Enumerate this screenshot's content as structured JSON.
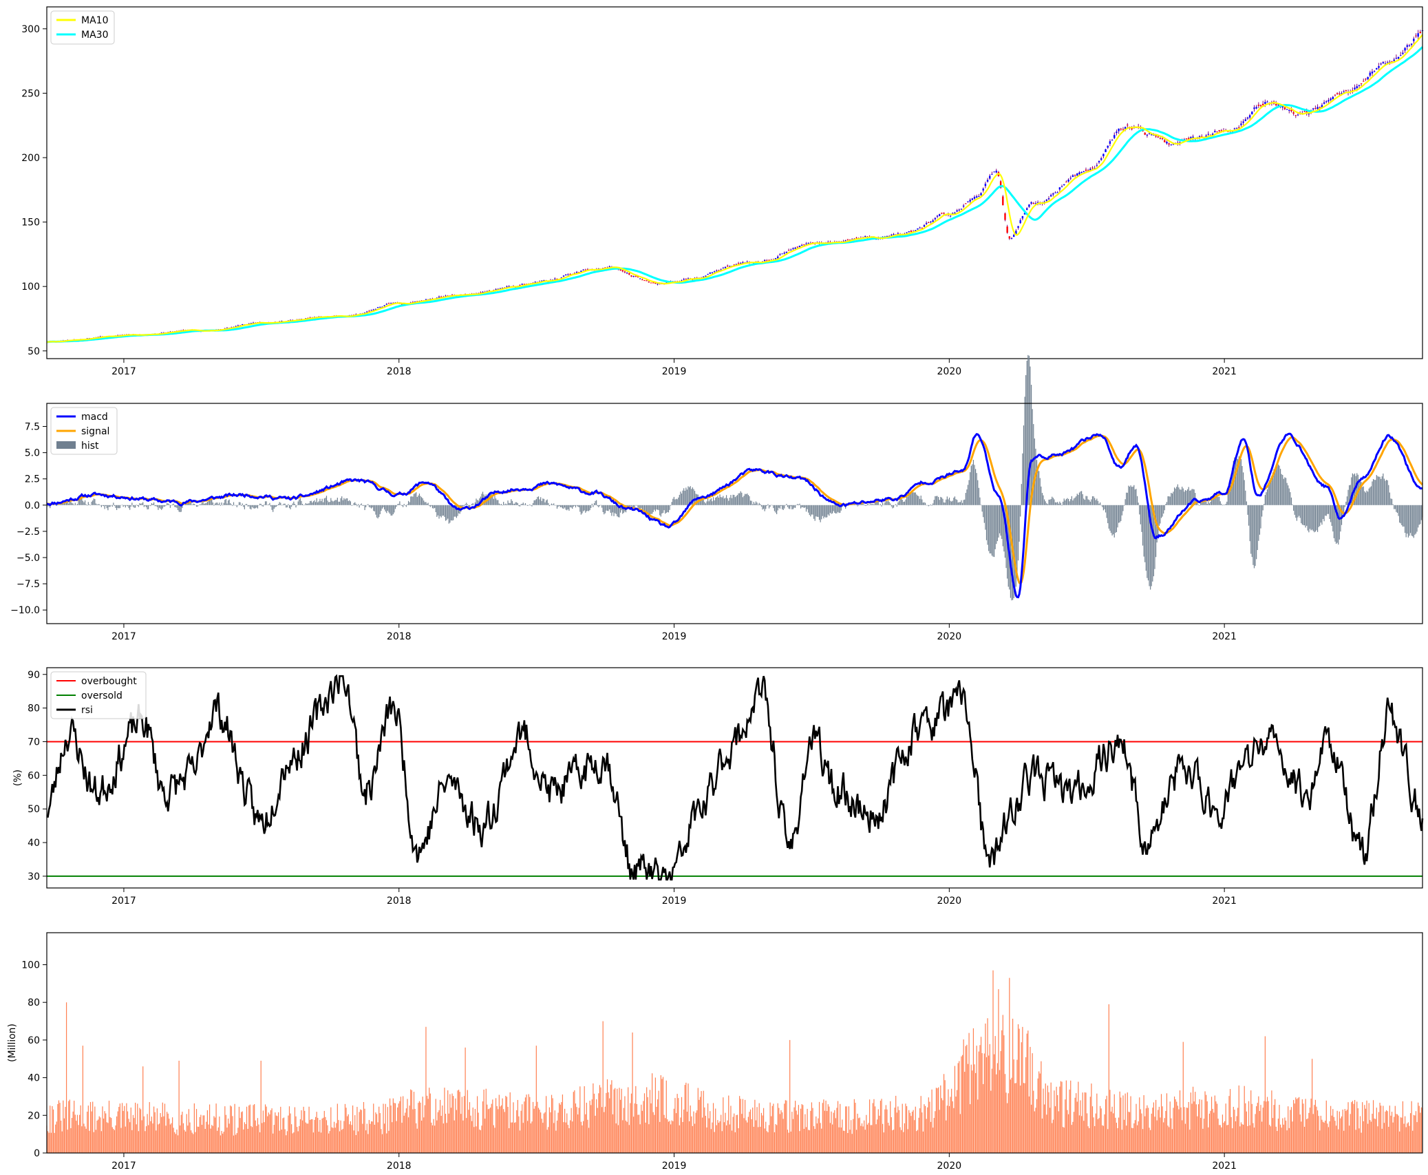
{
  "chart_data": [
    {
      "id": "price",
      "type": "candlestick+line",
      "xlim": [
        2016.72,
        2021.72
      ],
      "ylim": [
        44,
        317
      ],
      "yticks": [
        50,
        100,
        150,
        200,
        250,
        300
      ],
      "ytick_labels": [
        "50",
        "100",
        "150",
        "200",
        "250",
        "300"
      ],
      "xticks": [
        2017,
        2018,
        2019,
        2020,
        2021
      ],
      "xtick_labels": [
        "2017",
        "2018",
        "2019",
        "2020",
        "2021"
      ],
      "ylabel": "",
      "legend": {
        "placement": "top-left",
        "entries": [
          {
            "label": "MA10",
            "color": "#ffff00",
            "kind": "line"
          },
          {
            "label": "MA30",
            "color": "#00ffff",
            "kind": "line"
          }
        ]
      },
      "candle_colors": {
        "up": "#0000ff",
        "down": "#ff0000",
        "wick": "#800080"
      },
      "price_anchor_points": {
        "x": [
          2016.72,
          2017.0,
          2017.3,
          2017.5,
          2017.8,
          2018.0,
          2018.2,
          2018.5,
          2018.75,
          2018.95,
          2019.0,
          2019.3,
          2019.5,
          2019.7,
          2019.85,
          2020.0,
          2020.1,
          2020.17,
          2020.22,
          2020.3,
          2020.5,
          2020.65,
          2020.8,
          2021.0,
          2021.15,
          2021.3,
          2021.45,
          2021.6,
          2021.72
        ],
        "y": [
          57,
          62,
          66,
          72,
          77,
          87,
          93,
          103,
          115,
          102,
          104,
          120,
          133,
          138,
          140,
          157,
          170,
          190,
          138,
          165,
          190,
          225,
          212,
          221,
          242,
          236,
          250,
          275,
          298
        ]
      },
      "series": [
        {
          "name": "MA10",
          "color": "#ffff00",
          "lag_years": 0.02
        },
        {
          "name": "MA30",
          "color": "#00ffff",
          "lag_years": 0.06
        }
      ]
    },
    {
      "id": "macd",
      "type": "line+bar",
      "xlim": [
        2016.72,
        2021.72
      ],
      "ylim": [
        -11.3,
        9.7
      ],
      "yticks": [
        7.5,
        5.0,
        2.5,
        0.0,
        -2.5,
        -5.0,
        -7.5,
        -10.0
      ],
      "ytick_labels": [
        "7.5",
        "5.0",
        "2.5",
        "0.0",
        "−2.5",
        "−5.0",
        "−7.5",
        "−10.0"
      ],
      "xticks": [
        2017,
        2018,
        2019,
        2020,
        2021
      ],
      "xtick_labels": [
        "2017",
        "2018",
        "2019",
        "2020",
        "2021"
      ],
      "legend": {
        "placement": "top-left",
        "entries": [
          {
            "label": "macd",
            "color": "#0000ff",
            "kind": "line"
          },
          {
            "label": "signal",
            "color": "#ffa500",
            "kind": "line"
          },
          {
            "label": "hist",
            "color": "#708090",
            "kind": "patch"
          }
        ]
      },
      "macd_anchor_points": {
        "x": [
          2016.72,
          2016.9,
          2017.2,
          2017.45,
          2017.6,
          2017.85,
          2018.0,
          2018.1,
          2018.22,
          2018.4,
          2018.55,
          2018.7,
          2018.85,
          2018.98,
          2019.1,
          2019.3,
          2019.45,
          2019.6,
          2019.8,
          2019.92,
          2020.05,
          2020.1,
          2020.18,
          2020.25,
          2020.3,
          2020.4,
          2020.55,
          2020.62,
          2020.68,
          2020.75,
          2020.9,
          2021.0,
          2021.07,
          2021.12,
          2021.23,
          2021.37,
          2021.42,
          2021.5,
          2021.6,
          2021.72
        ],
        "y": [
          0.2,
          1.0,
          0.3,
          1.0,
          0.6,
          2.3,
          1.0,
          2.2,
          -0.5,
          1.5,
          2.0,
          1.2,
          -0.5,
          -2.1,
          0.8,
          3.3,
          2.5,
          0.0,
          0.6,
          2.3,
          3.2,
          6.8,
          1.0,
          -8.8,
          4.5,
          4.8,
          6.8,
          3.5,
          5.8,
          -3.0,
          0.3,
          1.2,
          6.5,
          1.0,
          6.6,
          1.8,
          -1.3,
          2.5,
          6.6,
          1.5
        ]
      },
      "series": [
        {
          "name": "macd",
          "color": "#0000ff"
        },
        {
          "name": "signal",
          "color": "#ffa500",
          "lag_years": 0.025
        },
        {
          "name": "hist",
          "color": "#708090",
          "type": "bar"
        }
      ]
    },
    {
      "id": "rsi",
      "type": "line",
      "xlim": [
        2016.72,
        2021.72
      ],
      "ylim": [
        26.5,
        92
      ],
      "yticks": [
        30,
        40,
        50,
        60,
        70,
        80,
        90
      ],
      "ytick_labels": [
        "30",
        "40",
        "50",
        "60",
        "70",
        "80",
        "90"
      ],
      "xticks": [
        2017,
        2018,
        2019,
        2020,
        2021
      ],
      "xtick_labels": [
        "2017",
        "2018",
        "2019",
        "2020",
        "2021"
      ],
      "ylabel": "(%)",
      "overbought": 70,
      "oversold": 30,
      "legend": {
        "placement": "top-left",
        "entries": [
          {
            "label": "overbought",
            "color": "#ff0000",
            "kind": "line"
          },
          {
            "label": "oversold",
            "color": "#008000",
            "kind": "line"
          },
          {
            "label": "rsi",
            "color": "#000000",
            "kind": "line"
          }
        ]
      },
      "rsi_anchor_points": {
        "x": [
          2016.72,
          2016.8,
          2016.9,
          2017.07,
          2017.15,
          2017.25,
          2017.33,
          2017.5,
          2017.6,
          2017.8,
          2017.88,
          2017.98,
          2018.07,
          2018.18,
          2018.3,
          2018.45,
          2018.55,
          2018.75,
          2018.85,
          2018.98,
          2019.1,
          2019.2,
          2019.32,
          2019.42,
          2019.5,
          2019.6,
          2019.72,
          2019.9,
          2020.05,
          2020.15,
          2020.2,
          2020.3,
          2020.45,
          2020.62,
          2020.72,
          2020.85,
          2020.98,
          2021.06,
          2021.15,
          2021.3,
          2021.38,
          2021.5,
          2021.6,
          2021.72
        ],
        "y": [
          50,
          73,
          55,
          76,
          55,
          60,
          80,
          46,
          65,
          89,
          55,
          80,
          38,
          58,
          45,
          72,
          55,
          65,
          32,
          29,
          50,
          68,
          84,
          38,
          70,
          55,
          48,
          75,
          82,
          32,
          45,
          60,
          55,
          70,
          40,
          62,
          50,
          62,
          70,
          55,
          71,
          36,
          78,
          48
        ]
      },
      "series": [
        {
          "name": "rsi",
          "color": "#000000"
        },
        {
          "name": "overbought",
          "color": "#ff0000",
          "constant": 70
        },
        {
          "name": "oversold",
          "color": "#008000",
          "constant": 30
        }
      ]
    },
    {
      "id": "volume",
      "type": "bar",
      "xlim": [
        2016.72,
        2021.72
      ],
      "ylim": [
        0,
        117
      ],
      "yticks": [
        0,
        20,
        40,
        60,
        80,
        100
      ],
      "ytick_labels": [
        "0",
        "20",
        "40",
        "60",
        "80",
        "100"
      ],
      "xticks": [
        2017,
        2018,
        2019,
        2020,
        2021
      ],
      "xtick_labels": [
        "2017",
        "2018",
        "2019",
        "2020",
        "2021"
      ],
      "ylabel": "(Million)",
      "bar_color": "#ff7f50",
      "volume_anchor_points": {
        "x": [
          2016.72,
          2017.5,
          2017.9,
          2018.1,
          2018.5,
          2018.9,
          2019.2,
          2019.6,
          2019.9,
          2020.15,
          2020.25,
          2020.4,
          2020.7,
          2021.0,
          2021.4,
          2021.72
        ],
        "y": [
          22,
          20,
          21,
          28,
          25,
          33,
          24,
          22,
          24,
          60,
          55,
          30,
          26,
          28,
          22,
          22
        ]
      },
      "spikes": {
        "x": [
          2016.79,
          2016.85,
          2017.07,
          2017.2,
          2017.5,
          2018.1,
          2018.24,
          2018.5,
          2018.74,
          2018.85,
          2019.42,
          2020.1,
          2020.16,
          2020.18,
          2020.22,
          2020.58,
          2020.85,
          2021.15,
          2021.32
        ],
        "y": [
          80,
          57,
          46,
          49,
          49,
          67,
          56,
          57,
          70,
          64,
          60,
          57,
          97,
          87,
          93,
          79,
          59,
          62,
          50
        ]
      },
      "series": [
        {
          "name": "volume",
          "color": "#ff7f50"
        }
      ]
    }
  ]
}
